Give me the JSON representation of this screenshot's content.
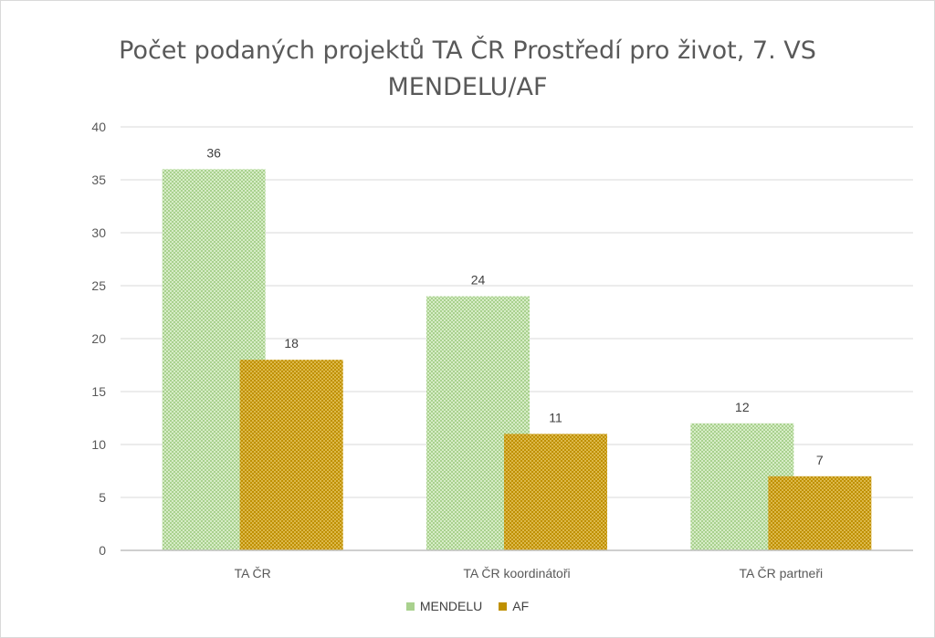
{
  "chart_data": {
    "type": "bar",
    "title": "Počet podaných projektů TA ČR Prostředí pro život, 7. VS MENDELU/AF",
    "title_lines": [
      "Počet podaných projektů TA ČR Prostředí pro život, 7. VS",
      "MENDELU/AF"
    ],
    "categories": [
      "TA ČR",
      "TA ČR koordinátoři",
      "TA ČR partneři"
    ],
    "series": [
      {
        "name": "MENDELU",
        "values": [
          36,
          24,
          12
        ],
        "color": "#a9d18e",
        "pattern_color": "#dff0d3"
      },
      {
        "name": "AF",
        "values": [
          18,
          11,
          7
        ],
        "color": "#bf9000",
        "pattern_color": "#e0c060"
      }
    ],
    "ylim": [
      0,
      40
    ],
    "yticks": [
      0,
      5,
      10,
      15,
      20,
      25,
      30,
      35,
      40
    ],
    "grid": true,
    "legend_position": "bottom",
    "xlabel": "",
    "ylabel": ""
  }
}
